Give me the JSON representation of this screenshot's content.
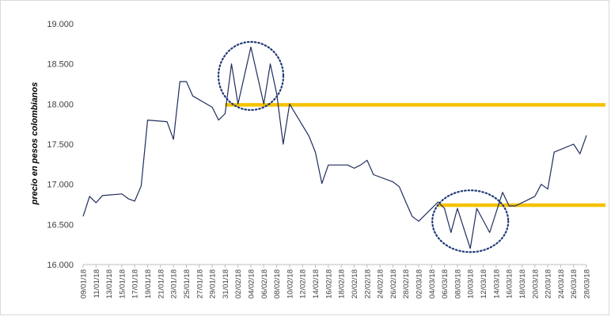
{
  "chart_data": {
    "type": "line",
    "title": "",
    "xlabel": "",
    "ylabel": "precio en pesos colombianos",
    "ylim": [
      16000,
      19000
    ],
    "yticks": [
      "16.000",
      "16.500",
      "17.000",
      "17.500",
      "18.000",
      "18.500",
      "19.000"
    ],
    "ytick_values": [
      16000,
      16500,
      17000,
      17500,
      18000,
      18500,
      19000
    ],
    "xrange": [
      "2018-01-09",
      "2018-03-28"
    ],
    "xticks": [
      "09/01/18",
      "11/01/18",
      "13/01/18",
      "15/01/18",
      "17/01/18",
      "19/01/18",
      "21/01/18",
      "23/01/18",
      "25/01/18",
      "27/01/18",
      "29/01/18",
      "31/01/18",
      "02/02/18",
      "04/02/18",
      "06/02/18",
      "08/02/18",
      "10/02/18",
      "12/02/18",
      "14/02/18",
      "16/02/18",
      "18/02/18",
      "20/02/18",
      "22/02/18",
      "24/02/18",
      "26/02/18",
      "28/02/18",
      "02/03/18",
      "04/03/18",
      "06/03/18",
      "08/03/18",
      "10/03/18",
      "12/03/18",
      "14/03/18",
      "16/03/18",
      "18/03/18",
      "20/03/18",
      "22/03/18",
      "24/03/18",
      "26/03/18",
      "28/03/18"
    ],
    "grid": false,
    "series": [
      {
        "color": "#1f2d5c",
        "points": [
          [
            "2018-01-09",
            16600
          ],
          [
            "2018-01-10",
            16850
          ],
          [
            "2018-01-11",
            16770
          ],
          [
            "2018-01-12",
            16860
          ],
          [
            "2018-01-15",
            16880
          ],
          [
            "2018-01-16",
            16820
          ],
          [
            "2018-01-17",
            16790
          ],
          [
            "2018-01-18",
            16980
          ],
          [
            "2018-01-19",
            17800
          ],
          [
            "2018-01-22",
            17780
          ],
          [
            "2018-01-23",
            17560
          ],
          [
            "2018-01-24",
            18280
          ],
          [
            "2018-01-25",
            18280
          ],
          [
            "2018-01-26",
            18100
          ],
          [
            "2018-01-29",
            17960
          ],
          [
            "2018-01-30",
            17800
          ],
          [
            "2018-01-31",
            17880
          ],
          [
            "2018-02-01",
            18500
          ],
          [
            "2018-02-02",
            18000
          ],
          [
            "2018-02-04",
            18710
          ],
          [
            "2018-02-06",
            18000
          ],
          [
            "2018-02-07",
            18500
          ],
          [
            "2018-02-08",
            18130
          ],
          [
            "2018-02-09",
            17500
          ],
          [
            "2018-02-10",
            18000
          ],
          [
            "2018-02-13",
            17600
          ],
          [
            "2018-02-14",
            17400
          ],
          [
            "2018-02-15",
            17010
          ],
          [
            "2018-02-16",
            17240
          ],
          [
            "2018-02-19",
            17240
          ],
          [
            "2018-02-20",
            17200
          ],
          [
            "2018-02-21",
            17240
          ],
          [
            "2018-02-22",
            17300
          ],
          [
            "2018-02-23",
            17120
          ],
          [
            "2018-02-26",
            17030
          ],
          [
            "2018-02-27",
            16970
          ],
          [
            "2018-02-28",
            16780
          ],
          [
            "2018-03-01",
            16600
          ],
          [
            "2018-03-02",
            16540
          ],
          [
            "2018-03-03",
            16620
          ],
          [
            "2018-03-05",
            16780
          ],
          [
            "2018-03-06",
            16700
          ],
          [
            "2018-03-07",
            16400
          ],
          [
            "2018-03-08",
            16700
          ],
          [
            "2018-03-10",
            16200
          ],
          [
            "2018-03-11",
            16700
          ],
          [
            "2018-03-13",
            16400
          ],
          [
            "2018-03-15",
            16900
          ],
          [
            "2018-03-16",
            16730
          ],
          [
            "2018-03-17",
            16730
          ],
          [
            "2018-03-20",
            16850
          ],
          [
            "2018-03-21",
            17000
          ],
          [
            "2018-03-22",
            16940
          ],
          [
            "2018-03-23",
            17400
          ],
          [
            "2018-03-26",
            17500
          ],
          [
            "2018-03-27",
            17380
          ],
          [
            "2018-03-28",
            17610
          ]
        ]
      }
    ],
    "annotations": {
      "resistance_line": {
        "y": 17990,
        "from": "2018-01-31",
        "to_edge": true,
        "color": "#f5c200"
      },
      "support_line": {
        "y": 16740,
        "from": "2018-03-05",
        "to_edge": true,
        "color": "#f5c200"
      },
      "ellipses": [
        {
          "cx": "2018-02-04",
          "cy": 18350,
          "color": "#1f3a78"
        },
        {
          "cx": "2018-03-10",
          "cy": 16540,
          "color": "#1f3a78"
        }
      ]
    }
  }
}
